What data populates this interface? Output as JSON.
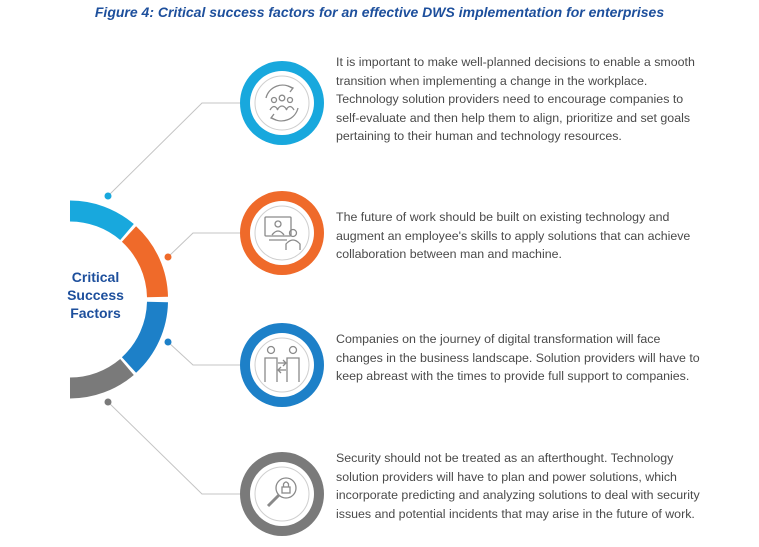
{
  "title": "Figure 4: Critical success factors for an effective DWS implementation for enterprises",
  "center_label": [
    "Critical",
    "Success",
    "Factors"
  ],
  "colors": {
    "cyan": "#18a8dd",
    "orange": "#ef6a2a",
    "blue": "#1d80c8",
    "gray": "#7a7a7a",
    "title": "#1d4f9c",
    "connector": "#c4c4c4"
  },
  "factors": [
    {
      "color": "#18a8dd",
      "icon": "team-cycle-icon",
      "text": "It is important to make well-planned decisions to enable a smooth transition when implementing a change in the workplace. Technology solution providers need to encourage companies to self-evaluate and then help them to align, prioritize and set goals pertaining to their human and technology resources."
    },
    {
      "color": "#ef6a2a",
      "icon": "video-conference-icon",
      "text": "The future of work should be built on existing technology and augment an employee's skills to apply solutions that can achieve collaboration between man and machine."
    },
    {
      "color": "#1d80c8",
      "icon": "two-people-exchange-icon",
      "text": "Companies on the journey of digital transformation will face changes in the business landscape. Solution providers will have to keep abreast with the times to provide full support to companies."
    },
    {
      "color": "#7a7a7a",
      "icon": "magnifier-lock-icon",
      "text": "Security should not be treated as an afterthought. Technology solution providers will have to plan and power solutions, which incorporate predicting and analyzing solutions to deal with security issues and potential incidents that may arise in the future of work."
    }
  ]
}
